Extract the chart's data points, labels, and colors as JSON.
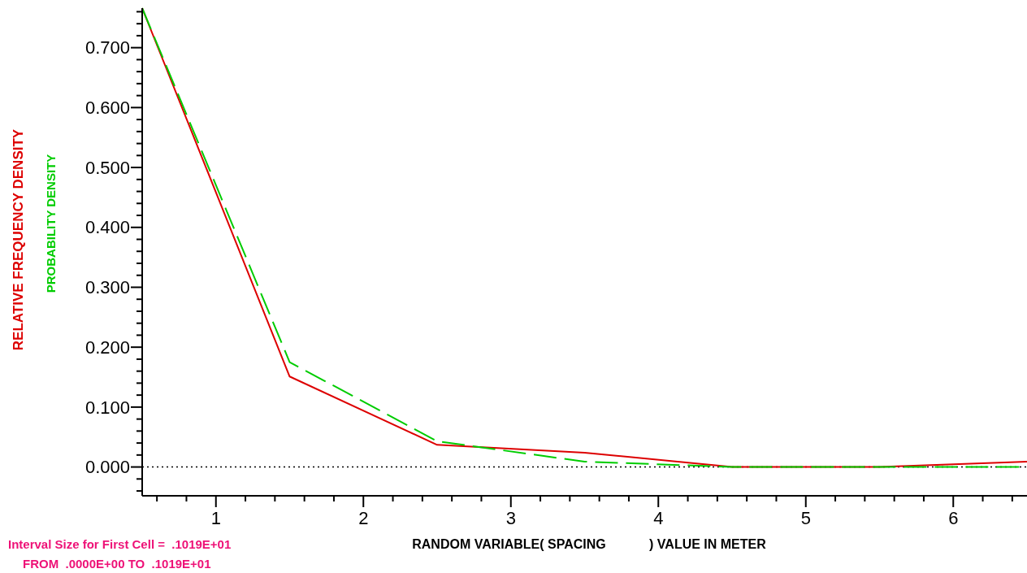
{
  "chart_data": {
    "type": "line",
    "xlabel": "RANDOM VARIABLE( SPACING            ) VALUE IN METER",
    "annotations": [
      "Interval Size for First Cell =  .1019E+01",
      "FROM  .0000E+00 TO  .1019E+01"
    ],
    "x": [
      0.5,
      1.5,
      2.5,
      3.5,
      4.5,
      5.5,
      6.5
    ],
    "series": [
      {
        "name": "RELATIVE FREQUENCY DENSITY",
        "color": "#dd0000",
        "line_style": "solid",
        "values": [
          0.766,
          0.151,
          0.037,
          0.024,
          0.0,
          0.0,
          0.009
        ]
      },
      {
        "name": "PROBABILITY DENSITY",
        "color": "#00cc00",
        "line_style": "dashed",
        "values": [
          0.766,
          0.175,
          0.043,
          0.009,
          0.0,
          0.0,
          0.0
        ]
      }
    ],
    "xlim": [
      0.5,
      6.5
    ],
    "ylim": [
      -0.044,
      0.766
    ],
    "xticks": [
      {
        "value": 0.6,
        "label": null
      },
      {
        "value": 0.8,
        "label": null
      },
      1,
      {
        "value": 1.2,
        "label": null
      },
      {
        "value": 1.4,
        "label": null
      },
      {
        "value": 1.6,
        "label": null
      },
      {
        "value": 1.8,
        "label": null
      },
      2,
      {
        "value": 2.2,
        "label": null
      },
      {
        "value": 2.4,
        "label": null
      },
      {
        "value": 2.6,
        "label": null
      },
      {
        "value": 2.8,
        "label": null
      },
      3,
      {
        "value": 3.2,
        "label": null
      },
      {
        "value": 3.4,
        "label": null
      },
      {
        "value": 3.6,
        "label": null
      },
      {
        "value": 3.8,
        "label": null
      },
      4,
      {
        "value": 4.2,
        "label": null
      },
      {
        "value": 4.4,
        "label": null
      },
      {
        "value": 4.6,
        "label": null
      },
      {
        "value": 4.8,
        "label": null
      },
      5,
      {
        "value": 5.2,
        "label": null
      },
      {
        "value": 5.4,
        "label": null
      },
      {
        "value": 5.6,
        "label": null
      },
      {
        "value": 5.8,
        "label": null
      },
      6,
      {
        "value": 6.2,
        "label": null
      },
      {
        "value": 6.4,
        "label": null
      }
    ],
    "yticks": [
      {
        "value": -0.04,
        "label": null
      },
      {
        "value": -0.02,
        "label": null
      },
      {
        "value": 0,
        "label": "0.000"
      },
      {
        "value": 0.02,
        "label": null
      },
      {
        "value": 0.04,
        "label": null
      },
      {
        "value": 0.06,
        "label": null
      },
      {
        "value": 0.08,
        "label": null
      },
      {
        "value": 0.1,
        "label": "0.100"
      },
      {
        "value": 0.12,
        "label": null
      },
      {
        "value": 0.14,
        "label": null
      },
      {
        "value": 0.16,
        "label": null
      },
      {
        "value": 0.18,
        "label": null
      },
      {
        "value": 0.2,
        "label": "0.200"
      },
      {
        "value": 0.22,
        "label": null
      },
      {
        "value": 0.24,
        "label": null
      },
      {
        "value": 0.26,
        "label": null
      },
      {
        "value": 0.28,
        "label": null
      },
      {
        "value": 0.3,
        "label": "0.300"
      },
      {
        "value": 0.32,
        "label": null
      },
      {
        "value": 0.34,
        "label": null
      },
      {
        "value": 0.36,
        "label": null
      },
      {
        "value": 0.38,
        "label": null
      },
      {
        "value": 0.4,
        "label": "0.400"
      },
      {
        "value": 0.42,
        "label": null
      },
      {
        "value": 0.44,
        "label": null
      },
      {
        "value": 0.46,
        "label": null
      },
      {
        "value": 0.48,
        "label": null
      },
      {
        "value": 0.5,
        "label": "0.500"
      },
      {
        "value": 0.52,
        "label": null
      },
      {
        "value": 0.54,
        "label": null
      },
      {
        "value": 0.56,
        "label": null
      },
      {
        "value": 0.58,
        "label": null
      },
      {
        "value": 0.6,
        "label": "0.600"
      },
      {
        "value": 0.62,
        "label": null
      },
      {
        "value": 0.64,
        "label": null
      },
      {
        "value": 0.66,
        "label": null
      },
      {
        "value": 0.68,
        "label": null
      },
      {
        "value": 0.7,
        "label": "0.700"
      },
      {
        "value": 0.72,
        "label": null
      },
      {
        "value": 0.74,
        "label": null
      },
      {
        "value": 0.76,
        "label": null
      }
    ],
    "ref_lines": [
      {
        "axis": "y",
        "value": 0,
        "color": "#000000",
        "line_style": "dotted"
      }
    ],
    "grid": false,
    "legend": "left"
  }
}
